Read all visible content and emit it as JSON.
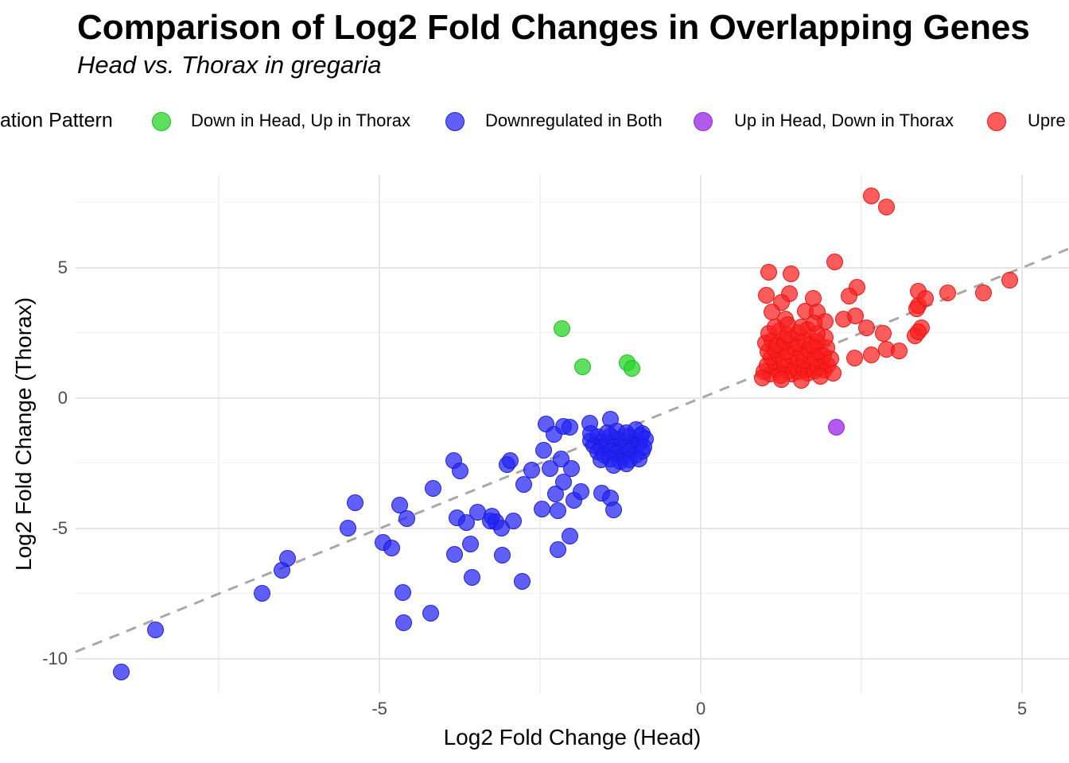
{
  "header": {
    "title": "Comparison of Log2 Fold Changes in Overlapping Genes",
    "subtitle": "Head vs. Thorax in gregaria"
  },
  "legend": {
    "title": "ation Pattern",
    "items": [
      {
        "label": "Down in Head, Up in Thorax"
      },
      {
        "label": "Downregulated in Both"
      },
      {
        "label": "Up in Head, Down in Thorax"
      },
      {
        "label": "Upre"
      }
    ]
  },
  "axes": {
    "x": {
      "label": "Log2 Fold Change (Head)",
      "ticks": [
        -5,
        0,
        5
      ],
      "minor_ticks": [
        -7.5,
        -2.5,
        2.5
      ],
      "lim": [
        -9.73,
        5.73
      ]
    },
    "y": {
      "label": "Log2 Fold Change (Thorax)",
      "ticks": [
        -10,
        -5,
        0,
        5
      ],
      "minor_ticks": [
        -7.5,
        -2.5,
        2.5,
        7.5
      ],
      "lim": [
        -11.34,
        8.56
      ]
    }
  },
  "reference_line": {
    "style": "dashed",
    "slope": 1,
    "intercept": 0,
    "color": "#a8a8a8"
  },
  "chart_data": {
    "type": "scatter",
    "title": "Comparison of Log2 Fold Changes in Overlapping Genes",
    "subtitle": "Head vs. Thorax in gregaria",
    "xlabel": "Log2 Fold Change (Head)",
    "ylabel": "Log2 Fold Change (Thorax)",
    "xlim": [
      -9.73,
      5.73
    ],
    "ylim": [
      -11.34,
      8.56
    ],
    "grid": true,
    "legend_position": "top",
    "series": [
      {
        "name": "Down in Head, Up in Thorax",
        "fill": "rgba(40,214,40,0.75)",
        "stroke": "rgba(30,185,30,0.95)",
        "points": [
          [
            -2.16,
            2.65
          ],
          [
            -1.84,
            1.19
          ],
          [
            -1.15,
            1.34
          ],
          [
            -1.07,
            1.13
          ]
        ]
      },
      {
        "name": "Downregulated in Both",
        "fill": "rgba(35,35,245,0.72)",
        "stroke": "rgba(25,25,210,0.9)",
        "points": [
          [
            -9.02,
            -10.49
          ],
          [
            -8.48,
            -8.9
          ],
          [
            -6.83,
            -7.5
          ],
          [
            -6.52,
            -6.59
          ],
          [
            -6.43,
            -6.13
          ],
          [
            -5.49,
            -5.0
          ],
          [
            -5.38,
            -4.02
          ],
          [
            -4.95,
            -5.52
          ],
          [
            -4.81,
            -5.76
          ],
          [
            -4.69,
            -4.09
          ],
          [
            -4.64,
            -7.44
          ],
          [
            -4.63,
            -8.6
          ],
          [
            -4.58,
            -4.63
          ],
          [
            -4.2,
            -8.26
          ],
          [
            -4.17,
            -3.45
          ],
          [
            -3.85,
            -2.41
          ],
          [
            -3.83,
            -5.98
          ],
          [
            -3.79,
            -4.6
          ],
          [
            -3.74,
            -2.8
          ],
          [
            -3.65,
            -4.76
          ],
          [
            -3.58,
            -5.61
          ],
          [
            -3.56,
            -6.89
          ],
          [
            -3.47,
            -4.39
          ],
          [
            -3.27,
            -4.7
          ],
          [
            -3.25,
            -4.54
          ],
          [
            -3.19,
            -4.73
          ],
          [
            -3.1,
            -5.0
          ],
          [
            -3.09,
            -6.01
          ],
          [
            -3.02,
            -2.56
          ],
          [
            -2.96,
            -2.41
          ],
          [
            -2.91,
            -4.7
          ],
          [
            -2.78,
            -7.04
          ],
          [
            -2.75,
            -3.32
          ],
          [
            -2.63,
            -2.77
          ],
          [
            -2.47,
            -4.24
          ],
          [
            -2.44,
            -2.01
          ],
          [
            -2.41,
            -0.98
          ],
          [
            -2.35,
            -2.71
          ],
          [
            -2.28,
            -1.4
          ],
          [
            -2.26,
            -3.69
          ],
          [
            -2.22,
            -4.33
          ],
          [
            -2.22,
            -5.82
          ],
          [
            -2.17,
            -2.32
          ],
          [
            -2.14,
            -1.1
          ],
          [
            -2.14,
            -3.23
          ],
          [
            -2.04,
            -1.13
          ],
          [
            -2.04,
            -5.3
          ],
          [
            -2.01,
            -2.71
          ],
          [
            -1.98,
            -3.93
          ],
          [
            -1.86,
            -3.57
          ],
          [
            -1.73,
            -0.95
          ],
          [
            -1.54,
            -3.63
          ],
          [
            -1.4,
            -0.82
          ],
          [
            -1.4,
            -3.84
          ],
          [
            -1.36,
            -4.3
          ],
          [
            -1.71,
            -1.62
          ],
          [
            -1.61,
            -1.49
          ],
          [
            -1.52,
            -1.66
          ],
          [
            -1.41,
            -1.44
          ],
          [
            -1.31,
            -1.57
          ],
          [
            -1.21,
            -1.62
          ],
          [
            -1.11,
            -1.49
          ],
          [
            -1.01,
            -1.66
          ],
          [
            -0.94,
            -1.44
          ],
          [
            -1.66,
            -1.82
          ],
          [
            -1.56,
            -1.92
          ],
          [
            -1.46,
            -1.74
          ],
          [
            -1.36,
            -1.87
          ],
          [
            -1.26,
            -1.97
          ],
          [
            -1.16,
            -1.79
          ],
          [
            -1.06,
            -1.92
          ],
          [
            -0.96,
            -1.74
          ],
          [
            -1.61,
            -2.07
          ],
          [
            -1.51,
            -2.17
          ],
          [
            -1.41,
            -2.02
          ],
          [
            -1.31,
            -2.12
          ],
          [
            -1.21,
            -2.22
          ],
          [
            -1.11,
            -2.04
          ],
          [
            -1.01,
            -2.17
          ],
          [
            -0.91,
            -2.02
          ],
          [
            -1.56,
            -2.37
          ],
          [
            -1.41,
            -2.32
          ],
          [
            -1.26,
            -2.42
          ],
          [
            -1.11,
            -2.37
          ],
          [
            -0.96,
            -2.32
          ],
          [
            -1.46,
            -1.32
          ],
          [
            -1.31,
            -1.27
          ],
          [
            -1.16,
            -1.32
          ],
          [
            -1.01,
            -1.22
          ],
          [
            -0.91,
            -1.37
          ],
          [
            -1.71,
            -1.37
          ],
          [
            -0.86,
            -1.57
          ],
          [
            -0.88,
            -1.87
          ],
          [
            -1.36,
            -2.57
          ],
          [
            -1.16,
            -2.52
          ]
        ]
      },
      {
        "name": "Up in Head, Down in Thorax",
        "fill": "rgba(164,60,235,0.85)",
        "stroke": "rgba(140,40,215,0.95)",
        "points": [
          [
            2.11,
            -1.13
          ]
        ]
      },
      {
        "name": "Upre",
        "fill": "rgba(250,30,30,0.72)",
        "stroke": "rgba(232,15,15,0.9)",
        "points": [
          [
            2.65,
            7.74
          ],
          [
            2.89,
            7.32
          ],
          [
            2.09,
            5.21
          ],
          [
            1.06,
            4.82
          ],
          [
            1.41,
            4.76
          ],
          [
            1.02,
            3.93
          ],
          [
            1.38,
            3.99
          ],
          [
            1.25,
            3.66
          ],
          [
            1.75,
            3.81
          ],
          [
            2.43,
            4.24
          ],
          [
            2.31,
            3.9
          ],
          [
            3.38,
            4.09
          ],
          [
            3.38,
            3.54
          ],
          [
            3.84,
            4.02
          ],
          [
            4.4,
            4.02
          ],
          [
            4.81,
            4.51
          ],
          [
            1.11,
            3.29
          ],
          [
            1.32,
            3.02
          ],
          [
            1.63,
            3.32
          ],
          [
            1.81,
            3.29
          ],
          [
            1.94,
            2.93
          ],
          [
            2.22,
            3.02
          ],
          [
            2.41,
            3.14
          ],
          [
            2.58,
            2.68
          ],
          [
            2.84,
            2.47
          ],
          [
            2.89,
            1.86
          ],
          [
            3.09,
            1.8
          ],
          [
            3.33,
            2.38
          ],
          [
            3.44,
            2.68
          ],
          [
            3.49,
            3.81
          ],
          [
            3.36,
            3.41
          ],
          [
            2.4,
            1.55
          ],
          [
            2.65,
            1.65
          ],
          [
            3.38,
            2.53
          ],
          [
            0.98,
            1.02
          ],
          [
            1.08,
            0.93
          ],
          [
            1.18,
            1.12
          ],
          [
            1.03,
            1.27
          ],
          [
            1.14,
            1.42
          ],
          [
            1.24,
            0.88
          ],
          [
            1.31,
            1.22
          ],
          [
            1.36,
            1.03
          ],
          [
            1.42,
            0.94
          ],
          [
            1.47,
            1.17
          ],
          [
            1.52,
            1.01
          ],
          [
            1.57,
            1.27
          ],
          [
            1.62,
            1.08
          ],
          [
            1.67,
            0.96
          ],
          [
            1.72,
            1.22
          ],
          [
            1.77,
            1.04
          ],
          [
            1.82,
            1.17
          ],
          [
            1.87,
            1.32
          ],
          [
            1.92,
            1.08
          ],
          [
            1.97,
            1.27
          ],
          [
            1.09,
            1.56
          ],
          [
            1.21,
            1.67
          ],
          [
            1.29,
            1.48
          ],
          [
            1.41,
            1.62
          ],
          [
            1.52,
            1.53
          ],
          [
            1.61,
            1.44
          ],
          [
            1.71,
            1.57
          ],
          [
            1.79,
            1.49
          ],
          [
            1.91,
            1.62
          ],
          [
            2.02,
            1.52
          ],
          [
            1.04,
            1.77
          ],
          [
            1.16,
            1.87
          ],
          [
            1.26,
            1.97
          ],
          [
            1.34,
            1.79
          ],
          [
            1.46,
            1.92
          ],
          [
            1.56,
            1.74
          ],
          [
            1.66,
            1.87
          ],
          [
            1.76,
            1.97
          ],
          [
            1.84,
            1.79
          ],
          [
            1.96,
            1.92
          ],
          [
            1.01,
            2.12
          ],
          [
            1.11,
            2.22
          ],
          [
            1.19,
            2.04
          ],
          [
            1.31,
            2.17
          ],
          [
            1.41,
            2.27
          ],
          [
            1.51,
            2.09
          ],
          [
            1.61,
            2.22
          ],
          [
            1.71,
            2.04
          ],
          [
            1.81,
            2.17
          ],
          [
            1.94,
            2.32
          ],
          [
            1.06,
            2.47
          ],
          [
            1.22,
            2.57
          ],
          [
            1.36,
            2.42
          ],
          [
            1.51,
            2.52
          ],
          [
            1.66,
            2.62
          ],
          [
            1.81,
            2.47
          ],
          [
            1.16,
            2.72
          ],
          [
            1.36,
            2.82
          ],
          [
            1.56,
            2.72
          ],
          [
            1.76,
            2.87
          ],
          [
            0.96,
            0.77
          ],
          [
            1.26,
            0.72
          ],
          [
            1.56,
            0.67
          ],
          [
            1.86,
            0.82
          ],
          [
            2.06,
            0.97
          ]
        ]
      }
    ]
  }
}
